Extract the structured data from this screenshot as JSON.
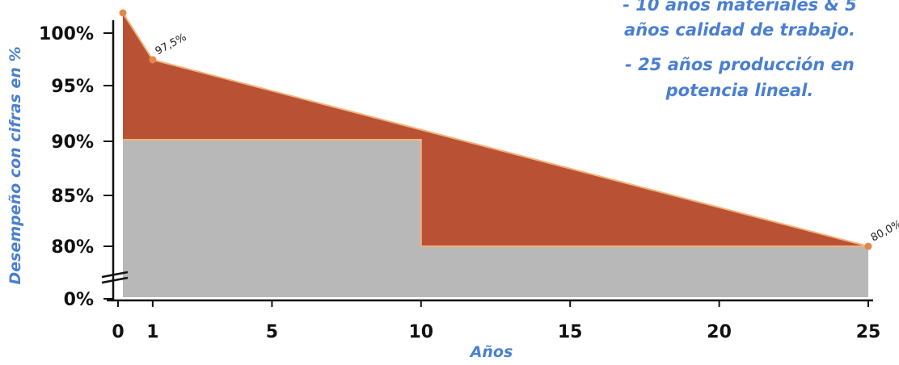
{
  "chart_data": {
    "type": "area",
    "xlabel": "Años",
    "ylabel": "Desempeño con cifras en %",
    "x_ticks": [
      "0",
      "1",
      "5",
      "10",
      "15",
      "20",
      "25"
    ],
    "y_ticks": [
      "0%",
      "80%",
      "85%",
      "90%",
      "95%",
      "100%"
    ],
    "xlim": [
      0,
      25
    ],
    "ylim": [
      80,
      100
    ],
    "y_axis_break": true,
    "series": [
      {
        "name": "",
        "x": [
          0,
          1,
          25
        ],
        "values": [
          100,
          97.5,
          80.0
        ],
        "color": "#b95234"
      },
      {
        "name": "",
        "x": [
          0,
          10,
          10,
          25
        ],
        "values": [
          90,
          90,
          80,
          80
        ],
        "color": "#b8b8b8"
      }
    ],
    "data_labels": [
      {
        "x": 1,
        "y": 97.5,
        "text": "97,5%"
      },
      {
        "x": 25,
        "y": 80.0,
        "text": "80,0%"
      }
    ],
    "annotations": [
      "- 10 años materiales & 5",
      "años calidad de trabajo.",
      "- 25 años producción en",
      "potencia lineal."
    ],
    "colors": {
      "performance": "#b95234",
      "guarantee": "#b8b8b8",
      "edge": "#f3b27a",
      "point": "#e3874b",
      "text_accent": "#4a7fd1"
    }
  }
}
